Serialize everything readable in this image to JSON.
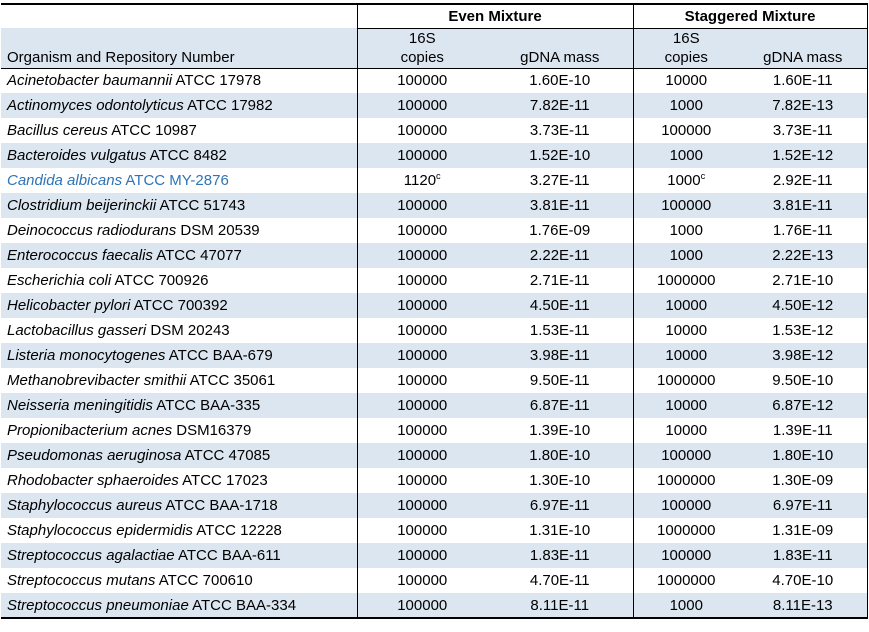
{
  "table": {
    "column_groups": [
      {
        "label": "Even Mixture"
      },
      {
        "label": "Staggered Mixture"
      }
    ],
    "organism_header": "Organism and Repository Number",
    "subheaders": {
      "copies_line1": "16S",
      "copies_line2": "copies",
      "gdna": "gDNA mass"
    },
    "colors": {
      "band": "#DCE6F1",
      "highlight_text": "#2E74B5",
      "border": "#000000"
    },
    "rows": [
      {
        "genus_species": "Acinetobacter baumannii",
        "strain": "ATCC 17978",
        "even_copies": "100000",
        "even_copies_sup": "",
        "even_gdna": "1.60E-10",
        "stag_copies": "10000",
        "stag_copies_sup": "",
        "stag_gdna": "1.60E-11",
        "highlight": false
      },
      {
        "genus_species": "Actinomyces odontolyticus",
        "strain": "ATCC 17982",
        "even_copies": "100000",
        "even_copies_sup": "",
        "even_gdna": "7.82E-11",
        "stag_copies": "1000",
        "stag_copies_sup": "",
        "stag_gdna": "7.82E-13",
        "highlight": false
      },
      {
        "genus_species": "Bacillus cereus",
        "strain": "ATCC 10987",
        "even_copies": "100000",
        "even_copies_sup": "",
        "even_gdna": "3.73E-11",
        "stag_copies": "100000",
        "stag_copies_sup": "",
        "stag_gdna": "3.73E-11",
        "highlight": false
      },
      {
        "genus_species": "Bacteroides vulgatus",
        "strain": "ATCC 8482",
        "even_copies": "100000",
        "even_copies_sup": "",
        "even_gdna": "1.52E-10",
        "stag_copies": "1000",
        "stag_copies_sup": "",
        "stag_gdna": "1.52E-12",
        "highlight": false
      },
      {
        "genus_species": "Candida albicans",
        "strain": "ATCC MY-2876",
        "even_copies": "1120",
        "even_copies_sup": "c",
        "even_gdna": "3.27E-11",
        "stag_copies": "1000",
        "stag_copies_sup": "c",
        "stag_gdna": "2.92E-11",
        "highlight": true
      },
      {
        "genus_species": "Clostridium beijerinckii",
        "strain": "ATCC 51743",
        "even_copies": "100000",
        "even_copies_sup": "",
        "even_gdna": "3.81E-11",
        "stag_copies": "100000",
        "stag_copies_sup": "",
        "stag_gdna": "3.81E-11",
        "highlight": false
      },
      {
        "genus_species": "Deinococcus radiodurans",
        "strain": "DSM 20539",
        "even_copies": "100000",
        "even_copies_sup": "",
        "even_gdna": "1.76E-09",
        "stag_copies": "1000",
        "stag_copies_sup": "",
        "stag_gdna": "1.76E-11",
        "highlight": false
      },
      {
        "genus_species": "Enterococcus faecalis",
        "strain": "ATCC 47077",
        "even_copies": "100000",
        "even_copies_sup": "",
        "even_gdna": "2.22E-11",
        "stag_copies": "1000",
        "stag_copies_sup": "",
        "stag_gdna": "2.22E-13",
        "highlight": false
      },
      {
        "genus_species": "Escherichia coli",
        "strain": "ATCC 700926",
        "even_copies": "100000",
        "even_copies_sup": "",
        "even_gdna": "2.71E-11",
        "stag_copies": "1000000",
        "stag_copies_sup": "",
        "stag_gdna": "2.71E-10",
        "highlight": false
      },
      {
        "genus_species": "Helicobacter pylori",
        "strain": "ATCC 700392",
        "even_copies": "100000",
        "even_copies_sup": "",
        "even_gdna": "4.50E-11",
        "stag_copies": "10000",
        "stag_copies_sup": "",
        "stag_gdna": "4.50E-12",
        "highlight": false
      },
      {
        "genus_species": "Lactobacillus gasseri",
        "strain": "DSM 20243",
        "even_copies": "100000",
        "even_copies_sup": "",
        "even_gdna": "1.53E-11",
        "stag_copies": "10000",
        "stag_copies_sup": "",
        "stag_gdna": "1.53E-12",
        "highlight": false
      },
      {
        "genus_species": "Listeria monocytogenes",
        "strain": "ATCC BAA-679",
        "even_copies": "100000",
        "even_copies_sup": "",
        "even_gdna": "3.98E-11",
        "stag_copies": "10000",
        "stag_copies_sup": "",
        "stag_gdna": "3.98E-12",
        "highlight": false
      },
      {
        "genus_species": "Methanobrevibacter smithii",
        "strain": "ATCC 35061",
        "even_copies": "100000",
        "even_copies_sup": "",
        "even_gdna": "9.50E-11",
        "stag_copies": "1000000",
        "stag_copies_sup": "",
        "stag_gdna": "9.50E-10",
        "highlight": false
      },
      {
        "genus_species": "Neisseria meningitidis",
        "strain": "ATCC BAA-335",
        "even_copies": "100000",
        "even_copies_sup": "",
        "even_gdna": "6.87E-11",
        "stag_copies": "10000",
        "stag_copies_sup": "",
        "stag_gdna": "6.87E-12",
        "highlight": false
      },
      {
        "genus_species": "Propionibacterium acnes",
        "strain": "DSM16379",
        "even_copies": "100000",
        "even_copies_sup": "",
        "even_gdna": "1.39E-10",
        "stag_copies": "10000",
        "stag_copies_sup": "",
        "stag_gdna": "1.39E-11",
        "highlight": false
      },
      {
        "genus_species": "Pseudomonas aeruginosa",
        "strain": "ATCC 47085",
        "even_copies": "100000",
        "even_copies_sup": "",
        "even_gdna": "1.80E-10",
        "stag_copies": "100000",
        "stag_copies_sup": "",
        "stag_gdna": "1.80E-10",
        "highlight": false
      },
      {
        "genus_species": "Rhodobacter sphaeroides",
        "strain": "ATCC 17023",
        "even_copies": "100000",
        "even_copies_sup": "",
        "even_gdna": "1.30E-10",
        "stag_copies": "1000000",
        "stag_copies_sup": "",
        "stag_gdna": "1.30E-09",
        "highlight": false
      },
      {
        "genus_species": "Staphylococcus aureus",
        "strain": "ATCC BAA-1718",
        "even_copies": "100000",
        "even_copies_sup": "",
        "even_gdna": "6.97E-11",
        "stag_copies": "100000",
        "stag_copies_sup": "",
        "stag_gdna": "6.97E-11",
        "highlight": false
      },
      {
        "genus_species": "Staphylococcus epidermidis",
        "strain": "ATCC 12228",
        "even_copies": "100000",
        "even_copies_sup": "",
        "even_gdna": "1.31E-10",
        "stag_copies": "1000000",
        "stag_copies_sup": "",
        "stag_gdna": "1.31E-09",
        "highlight": false
      },
      {
        "genus_species": "Streptococcus agalactiae",
        "strain": "ATCC BAA-611",
        "even_copies": "100000",
        "even_copies_sup": "",
        "even_gdna": "1.83E-11",
        "stag_copies": "100000",
        "stag_copies_sup": "",
        "stag_gdna": "1.83E-11",
        "highlight": false
      },
      {
        "genus_species": "Streptococcus mutans",
        "strain": "ATCC 700610",
        "even_copies": "100000",
        "even_copies_sup": "",
        "even_gdna": "4.70E-11",
        "stag_copies": "1000000",
        "stag_copies_sup": "",
        "stag_gdna": "4.70E-10",
        "highlight": false
      },
      {
        "genus_species": "Streptococcus pneumoniae",
        "strain": "ATCC BAA-334",
        "even_copies": "100000",
        "even_copies_sup": "",
        "even_gdna": "8.11E-11",
        "stag_copies": "1000",
        "stag_copies_sup": "",
        "stag_gdna": "8.11E-13",
        "highlight": false
      }
    ]
  }
}
